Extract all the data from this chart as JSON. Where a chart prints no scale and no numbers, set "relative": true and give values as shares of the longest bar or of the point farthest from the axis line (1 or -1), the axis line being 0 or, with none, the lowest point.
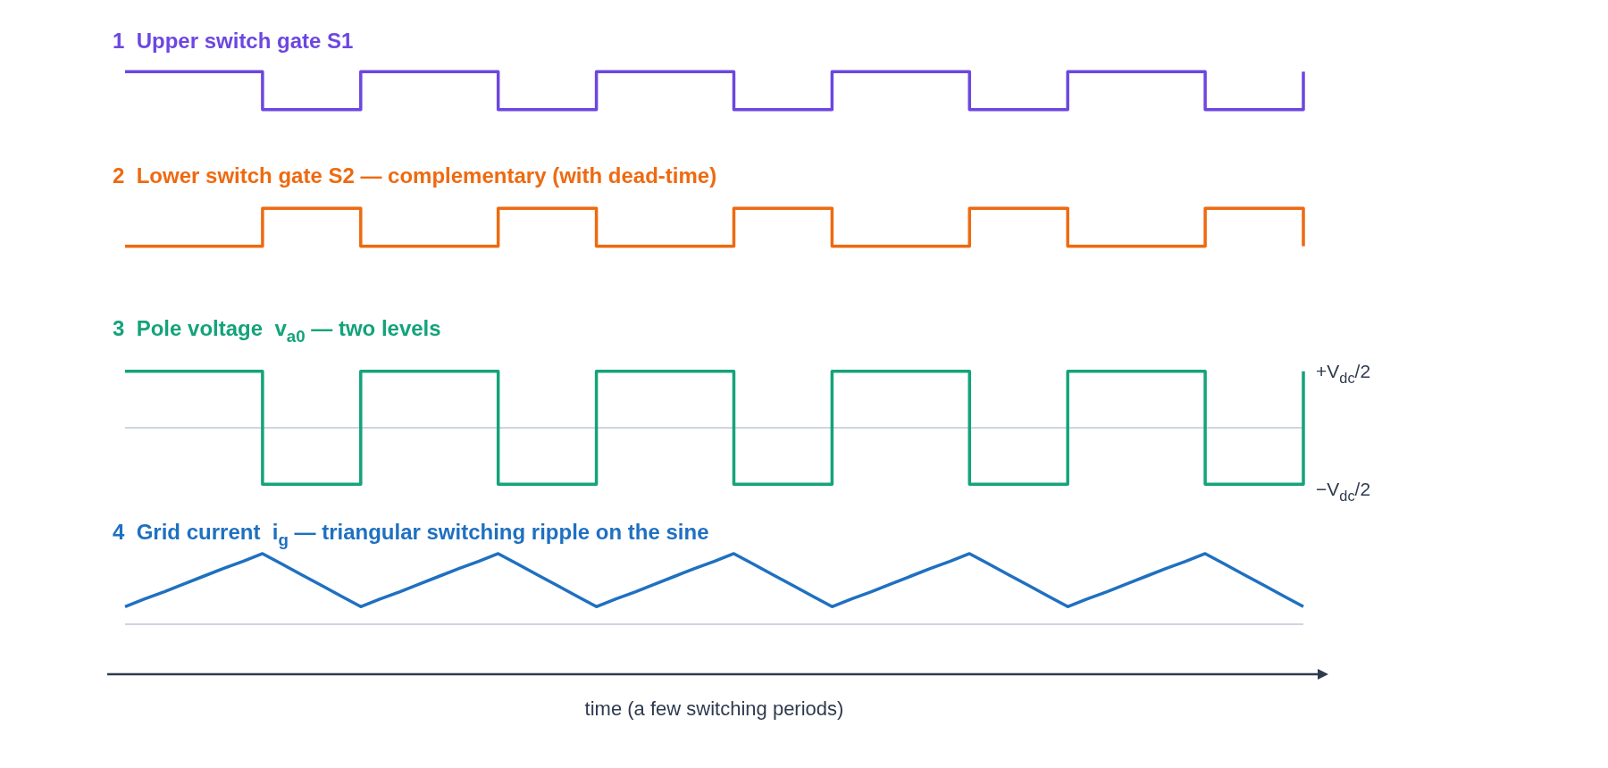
{
  "chart_data": [
    {
      "type": "step",
      "title": "1  Upper switch gate S1",
      "categories": [
        null,
        null,
        null,
        null,
        null,
        null,
        null,
        null,
        null,
        null,
        null,
        null,
        null,
        null,
        null,
        null,
        null,
        null,
        null,
        null,
        null,
        null,
        null,
        null,
        null,
        null,
        null,
        null,
        null,
        null,
        null,
        null,
        null,
        null,
        null,
        null,
        null,
        null,
        null,
        null,
        null,
        null,
        null,
        null,
        null,
        null,
        null,
        null,
        null,
        null,
        null,
        null,
        null,
        null,
        null,
        null,
        null,
        null,
        null,
        null,
        null
      ],
      "values": [
        1,
        1,
        1,
        1,
        1,
        1,
        1,
        0,
        0,
        0,
        0,
        0,
        1,
        1,
        1,
        1,
        1,
        1,
        1,
        0,
        0,
        0,
        0,
        0,
        1,
        1,
        1,
        1,
        1,
        1,
        1,
        0,
        0,
        0,
        0,
        0,
        1,
        1,
        1,
        1,
        1,
        1,
        1,
        0,
        0,
        0,
        0,
        0,
        1,
        1,
        1,
        1,
        1,
        1,
        1,
        0,
        0,
        0,
        0,
        0,
        1
      ],
      "color": "#6c47e0",
      "relative": true
    },
    {
      "type": "step",
      "title": "2  Lower switch gate S2 — complementary (with dead-time)",
      "categories": [
        null,
        null,
        null,
        null,
        null,
        null,
        null,
        null,
        null,
        null,
        null,
        null,
        null,
        null,
        null,
        null,
        null,
        null,
        null,
        null,
        null,
        null,
        null,
        null,
        null,
        null,
        null,
        null,
        null,
        null,
        null,
        null,
        null,
        null,
        null,
        null,
        null,
        null,
        null,
        null,
        null,
        null,
        null,
        null,
        null,
        null,
        null,
        null,
        null,
        null,
        null,
        null,
        null,
        null,
        null,
        null,
        null,
        null,
        null,
        null,
        null
      ],
      "values": [
        0,
        0,
        0,
        0,
        0,
        0,
        0,
        1,
        1,
        1,
        1,
        1,
        0,
        0,
        0,
        0,
        0,
        0,
        0,
        1,
        1,
        1,
        1,
        1,
        0,
        0,
        0,
        0,
        0,
        0,
        0,
        1,
        1,
        1,
        1,
        1,
        0,
        0,
        0,
        0,
        0,
        0,
        0,
        1,
        1,
        1,
        1,
        1,
        0,
        0,
        0,
        0,
        0,
        0,
        0,
        1,
        1,
        1,
        1,
        1,
        0
      ],
      "color": "#ee6a10",
      "relative": true
    },
    {
      "type": "step",
      "title": "3  Pole voltage  v$_{a0}$ — two levels",
      "categories": [
        null,
        null,
        null,
        null,
        null,
        null,
        null,
        null,
        null,
        null,
        null,
        null,
        null,
        null,
        null,
        null,
        null,
        null,
        null,
        null,
        null,
        null,
        null,
        null,
        null,
        null,
        null,
        null,
        null,
        null,
        null,
        null,
        null,
        null,
        null,
        null,
        null,
        null,
        null,
        null,
        null,
        null,
        null,
        null,
        null,
        null,
        null,
        null,
        null,
        null,
        null,
        null,
        null,
        null,
        null,
        null,
        null,
        null,
        null,
        null,
        null
      ],
      "values": [
        1,
        1,
        1,
        1,
        1,
        1,
        1,
        -1,
        -1,
        -1,
        -1,
        -1,
        1,
        1,
        1,
        1,
        1,
        1,
        1,
        -1,
        -1,
        -1,
        -1,
        -1,
        1,
        1,
        1,
        1,
        1,
        1,
        1,
        -1,
        -1,
        -1,
        -1,
        -1,
        1,
        1,
        1,
        1,
        1,
        1,
        1,
        -1,
        -1,
        -1,
        -1,
        -1,
        1,
        1,
        1,
        1,
        1,
        1,
        1,
        -1,
        -1,
        -1,
        -1,
        -1,
        1
      ],
      "color": "#14a37a",
      "relative": true,
      "annotations": [
        "+V$_{dc}$/2",
        "−V$_{dc}$/2"
      ],
      "ref_lines": [
        {
          "axis": "y",
          "value": 0,
          "color": "#cfd4e4"
        }
      ]
    },
    {
      "type": "line",
      "title": "4  Grid current  i$_{g}$ — triangular switching ripple on the sine",
      "categories": [
        null,
        null,
        null,
        null,
        null,
        null,
        null,
        null,
        null,
        null,
        null,
        null,
        null,
        null,
        null,
        null,
        null,
        null,
        null,
        null,
        null,
        null,
        null,
        null,
        null,
        null,
        null,
        null,
        null,
        null,
        null,
        null,
        null,
        null,
        null,
        null,
        null,
        null,
        null,
        null,
        null,
        null,
        null,
        null,
        null,
        null,
        null,
        null,
        null,
        null,
        null,
        null,
        null,
        null,
        null,
        null,
        null,
        null,
        null,
        null,
        null
      ],
      "values": [
        0.25,
        0.36,
        0.46,
        0.57,
        0.68,
        0.79,
        0.89,
        1,
        0.85,
        0.7,
        0.55,
        0.4,
        0.25,
        0.36,
        0.46,
        0.57,
        0.68,
        0.79,
        0.89,
        1,
        0.85,
        0.7,
        0.55,
        0.4,
        0.25,
        0.36,
        0.46,
        0.57,
        0.68,
        0.79,
        0.89,
        1,
        0.85,
        0.7,
        0.55,
        0.4,
        0.25,
        0.36,
        0.46,
        0.57,
        0.68,
        0.79,
        0.89,
        1,
        0.85,
        0.7,
        0.55,
        0.4,
        0.25,
        0.36,
        0.46,
        0.57,
        0.68,
        0.79,
        0.89,
        1,
        0.85,
        0.7,
        0.55,
        0.4,
        0.25
      ],
      "color": "#1f70c1",
      "relative": true,
      "ref_lines": [
        {
          "axis": "y",
          "value": 0,
          "color": "#cfd4e4"
        }
      ],
      "xlabel": "time (a few switching periods)"
    }
  ]
}
